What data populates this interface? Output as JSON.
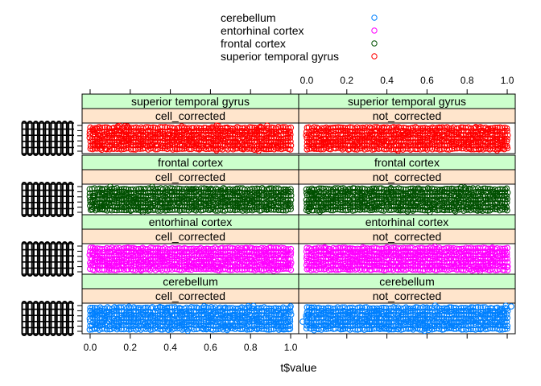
{
  "chart_data": {
    "type": "scatter",
    "title": "",
    "xlabel": "t$value",
    "ylabel": "",
    "xlim": [
      -0.04,
      1.04
    ],
    "x_ticks": [
      "0.0",
      "0.2",
      "0.4",
      "0.6",
      "0.8",
      "1.0"
    ],
    "legend": {
      "placement": "top",
      "entries": [
        {
          "label": "cerebellum",
          "color": "#0080ff"
        },
        {
          "label": "entorhinal cortex",
          "color": "#ff00ff"
        },
        {
          "label": "frontal cortex",
          "color": "#005000"
        },
        {
          "label": "superior temporal gyrus",
          "color": "#ff0000"
        }
      ]
    },
    "grid": false,
    "panels": [
      {
        "region": "superior temporal gyrus",
        "correction": "cell_corrected",
        "color": "#ff0000",
        "x_range": [
          0.0,
          1.0
        ]
      },
      {
        "region": "superior temporal gyrus",
        "correction": "not_corrected",
        "color": "#ff0000",
        "x_range": [
          0.0,
          1.0
        ]
      },
      {
        "region": "frontal cortex",
        "correction": "cell_corrected",
        "color": "#005000",
        "x_range": [
          0.0,
          1.0
        ]
      },
      {
        "region": "frontal cortex",
        "correction": "not_corrected",
        "color": "#005000",
        "x_range": [
          0.0,
          1.0
        ]
      },
      {
        "region": "entorhinal cortex",
        "correction": "cell_corrected",
        "color": "#ff00ff",
        "x_range": [
          0.0,
          1.0
        ]
      },
      {
        "region": "entorhinal cortex",
        "correction": "not_corrected",
        "color": "#ff00ff",
        "x_range": [
          0.0,
          1.0
        ]
      },
      {
        "region": "cerebellum",
        "correction": "cell_corrected",
        "color": "#0080ff",
        "x_range": [
          0.0,
          1.0
        ]
      },
      {
        "region": "cerebellum",
        "correction": "not_corrected",
        "color": "#0080ff",
        "x_range": [
          0.0,
          1.0
        ],
        "outliers": [
          {
            "x": -0.08,
            "y": "top"
          },
          {
            "x": 1.02,
            "y": "top"
          },
          {
            "x": -0.02,
            "y": "bottom"
          }
        ]
      }
    ]
  }
}
